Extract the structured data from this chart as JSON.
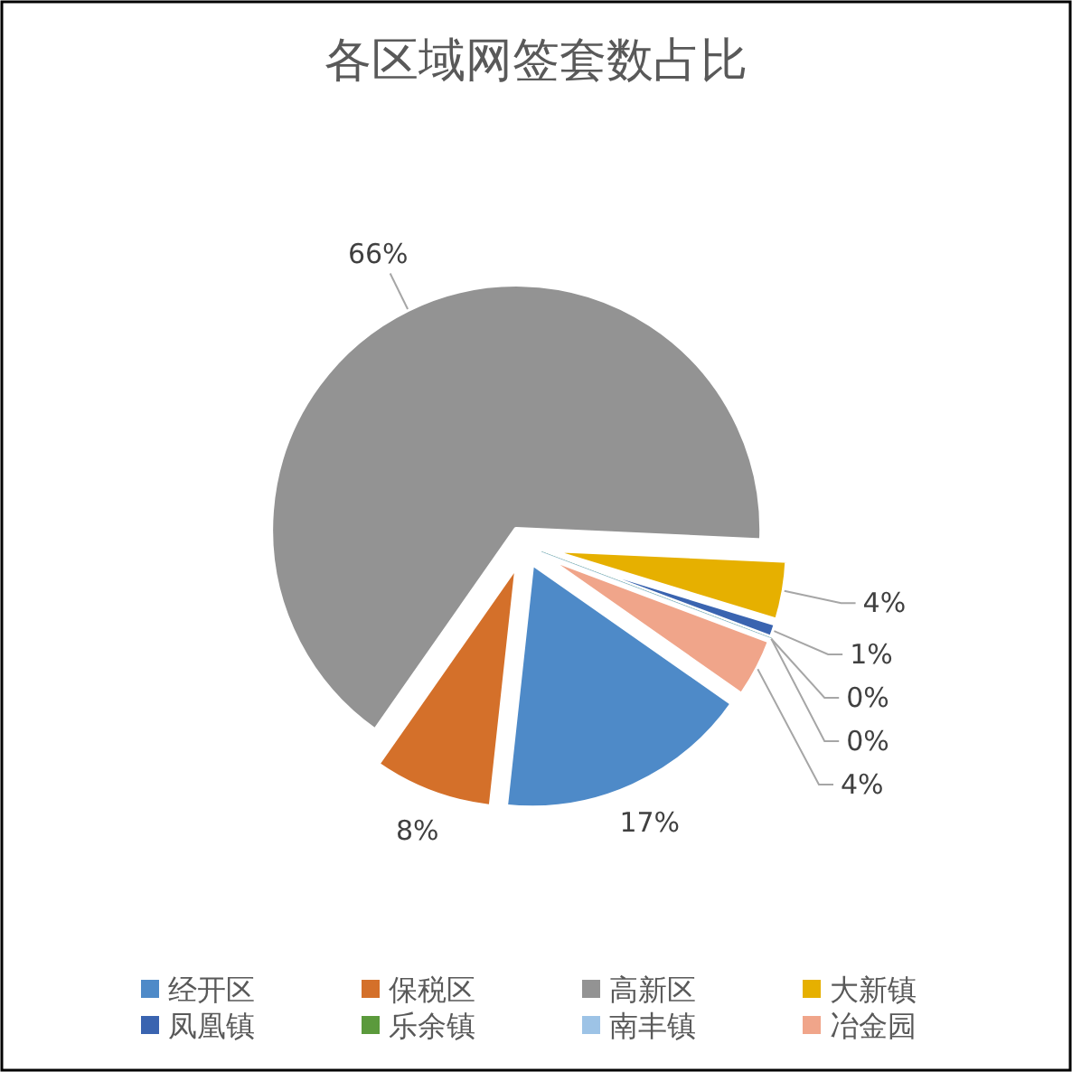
{
  "chart_data": {
    "type": "pie",
    "title": "各区域网签套数占比",
    "categories": [
      "经开区",
      "保税区",
      "高新区",
      "大新镇",
      "凤凰镇",
      "乐余镇",
      "南丰镇",
      "冶金园"
    ],
    "values": [
      17,
      8,
      66,
      4,
      1,
      0,
      0,
      4
    ],
    "value_labels": [
      "17%",
      "8%",
      "66%",
      "4%",
      "1%",
      "0%",
      "0%",
      "4%"
    ],
    "colors": [
      "#4e8ac8",
      "#d4702a",
      "#939393",
      "#e6b000",
      "#3a64b0",
      "#5b9a3c",
      "#9dc3e6",
      "#f0a58a"
    ],
    "legend": "bottom"
  }
}
